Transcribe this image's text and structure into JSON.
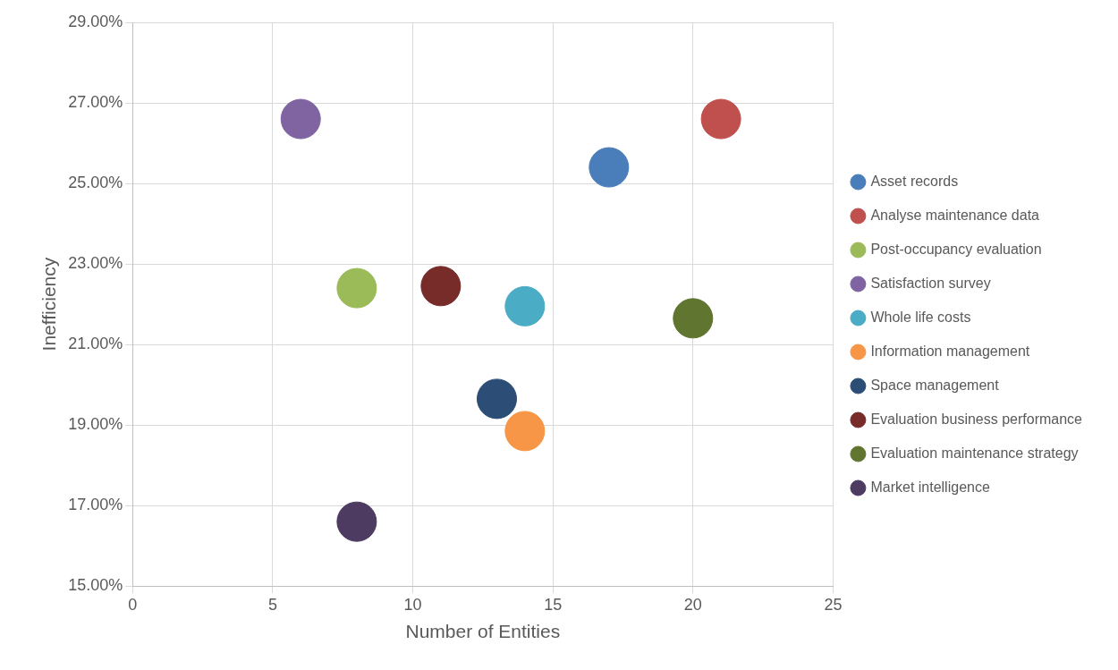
{
  "chart_data": {
    "type": "bubble",
    "xlabel": "Number of Entities",
    "ylabel": "Inefficiency",
    "xlim": [
      0,
      25
    ],
    "xticks": [
      0,
      5,
      10,
      15,
      20,
      25
    ],
    "ylim": [
      15,
      29
    ],
    "yticks": [
      {
        "value": 15,
        "label": "15.00%"
      },
      {
        "value": 17,
        "label": "17.00%"
      },
      {
        "value": 19,
        "label": "19.00%"
      },
      {
        "value": 21,
        "label": "21.00%"
      },
      {
        "value": 23,
        "label": "23.00%"
      },
      {
        "value": 25,
        "label": "25.00%"
      },
      {
        "value": 27,
        "label": "27.00%"
      },
      {
        "value": 29,
        "label": "29.00%"
      }
    ],
    "grid": true,
    "legend": "right",
    "series": [
      {
        "name": "Asset records",
        "color": "#4a7ebb",
        "x": [
          17
        ],
        "values": [
          25.4
        ],
        "sizes": [
          1
        ]
      },
      {
        "name": "Analyse maintenance data",
        "color": "#c0504d",
        "x": [
          21
        ],
        "values": [
          26.6
        ],
        "sizes": [
          1
        ]
      },
      {
        "name": "Post-occupancy evaluation",
        "color": "#9bbb59",
        "x": [
          8
        ],
        "values": [
          22.4
        ],
        "sizes": [
          1
        ]
      },
      {
        "name": "Satisfaction survey",
        "color": "#8064a2",
        "x": [
          6
        ],
        "values": [
          26.6
        ],
        "sizes": [
          1
        ]
      },
      {
        "name": "Whole life costs",
        "color": "#4bacc6",
        "x": [
          14
        ],
        "values": [
          21.95
        ],
        "sizes": [
          1
        ]
      },
      {
        "name": "Information management",
        "color": "#f79646",
        "x": [
          14
        ],
        "values": [
          18.85
        ],
        "sizes": [
          1
        ]
      },
      {
        "name": "Space management",
        "color": "#2c4d75",
        "x": [
          13
        ],
        "values": [
          19.65
        ],
        "sizes": [
          1
        ]
      },
      {
        "name": "Evaluation business performance",
        "color": "#772c2a",
        "x": [
          11
        ],
        "values": [
          22.45
        ],
        "sizes": [
          1
        ]
      },
      {
        "name": "Evaluation maintenance strategy",
        "color": "#5f7530",
        "x": [
          20
        ],
        "values": [
          21.65
        ],
        "sizes": [
          1
        ]
      },
      {
        "name": "Market intelligence",
        "color": "#4d3b62",
        "x": [
          8
        ],
        "values": [
          16.6
        ],
        "sizes": [
          1
        ]
      }
    ]
  }
}
